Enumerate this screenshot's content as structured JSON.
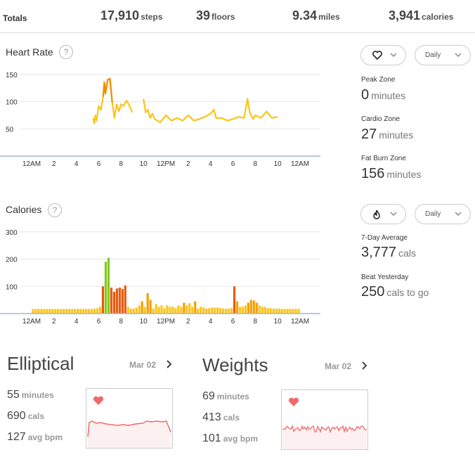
{
  "totals": {
    "label": "Totals",
    "items": [
      {
        "value": "17,910",
        "unit": "steps"
      },
      {
        "value": "39",
        "unit": "floors"
      },
      {
        "value": "9.34",
        "unit": "miles"
      },
      {
        "value": "3,941",
        "unit": "calories"
      }
    ]
  },
  "heart_rate": {
    "title": "Heart Rate",
    "help": "?",
    "period_dropdown": "Daily",
    "icon": "heart-icon",
    "zones": [
      {
        "label": "Peak Zone",
        "value": "0",
        "unit": "minutes"
      },
      {
        "label": "Cardio Zone",
        "value": "27",
        "unit": "minutes"
      },
      {
        "label": "Fat Burn Zone",
        "value": "156",
        "unit": "minutes"
      }
    ]
  },
  "calories": {
    "title": "Calories",
    "help": "?",
    "period_dropdown": "Daily",
    "icon": "flame-icon",
    "stats": [
      {
        "label": "7-Day Average",
        "value": "3,777",
        "unit": "cals"
      },
      {
        "label": "Beat Yesterday",
        "value": "250",
        "unit": "cals to go"
      }
    ]
  },
  "exercises": [
    {
      "title": "Elliptical",
      "date": "Mar 02",
      "stats": [
        {
          "value": "55",
          "unit": "minutes"
        },
        {
          "value": "690",
          "unit": "cals"
        },
        {
          "value": "127",
          "unit": "avg bpm"
        }
      ]
    },
    {
      "title": "Weights",
      "date": "Mar 02",
      "stats": [
        {
          "value": "69",
          "unit": "minutes"
        },
        {
          "value": "413",
          "unit": "cals"
        },
        {
          "value": "101",
          "unit": "avg bpm"
        }
      ]
    }
  ],
  "colors": {
    "hr_line": "#fcc419",
    "hr_line_hot": "#f08c00",
    "cal_bar": "#fcc419",
    "cal_bar_mid": "#f59f00",
    "cal_bar_hot": "#e8590c",
    "cal_bar_peak": "#82c91e",
    "ex_line": "#f06a6a",
    "ex_heart": "#f06a6a"
  },
  "chart_data": [
    {
      "type": "line",
      "name": "heart-rate",
      "x_tick_labels": [
        "12AM",
        "2",
        "4",
        "6",
        "8",
        "10",
        "12PM",
        "2",
        "4",
        "6",
        "8",
        "10",
        "12AM"
      ],
      "y_ticks": [
        50,
        100,
        150
      ],
      "ylim": [
        0,
        160
      ],
      "xlim_hours": [
        0,
        24
      ],
      "segments": [
        {
          "x": [
            5.5,
            5.6,
            5.7,
            5.8,
            6.0,
            6.2,
            6.4,
            6.5,
            6.6,
            6.8,
            7.0,
            7.2,
            7.4,
            7.6,
            7.8,
            8.0,
            8.2,
            8.5,
            8.8,
            9.0
          ],
          "y": [
            70,
            60,
            75,
            65,
            92,
            85,
            110,
            135,
            115,
            140,
            142,
            100,
            70,
            95,
            82,
            95,
            92,
            102,
            90,
            80
          ]
        },
        {
          "x": [
            10.0,
            10.2,
            10.4,
            10.6,
            10.8,
            11.0,
            11.5,
            12.0,
            12.5,
            13.0,
            13.5,
            14.0,
            14.5,
            15.0,
            15.5,
            16.0,
            16.3,
            16.5,
            17.0,
            17.5,
            18.0,
            18.5,
            19.0,
            19.3,
            19.5,
            19.8,
            20.0,
            20.5,
            21.0,
            21.5,
            22.0
          ],
          "y": [
            105,
            80,
            85,
            70,
            78,
            68,
            62,
            75,
            65,
            70,
            65,
            75,
            65,
            68,
            72,
            78,
            85,
            70,
            70,
            65,
            68,
            72,
            70,
            105,
            80,
            68,
            75,
            70,
            82,
            70,
            72
          ]
        }
      ]
    },
    {
      "type": "bar",
      "name": "calories",
      "x_tick_labels": [
        "12AM",
        "2",
        "4",
        "6",
        "8",
        "10",
        "12PM",
        "2",
        "4",
        "6",
        "8",
        "10",
        "12AM"
      ],
      "y_ticks": [
        100,
        200,
        300
      ],
      "ylim": [
        0,
        320
      ],
      "interval_hours": 0.25,
      "values": [
        17,
        17,
        17,
        17,
        17,
        17,
        17,
        17,
        17,
        17,
        17,
        17,
        17,
        17,
        17,
        17,
        17,
        17,
        17,
        17,
        17,
        17,
        18,
        20,
        25,
        100,
        190,
        205,
        95,
        80,
        92,
        95,
        90,
        103,
        25,
        18,
        18,
        22,
        30,
        45,
        25,
        75,
        50,
        18,
        35,
        25,
        30,
        20,
        30,
        25,
        25,
        20,
        30,
        25,
        40,
        30,
        38,
        25,
        45,
        18,
        25,
        22,
        18,
        20,
        22,
        22,
        22,
        20,
        18,
        18,
        18,
        20,
        100,
        45,
        25,
        25,
        30,
        40,
        50,
        48,
        40,
        30,
        25,
        25,
        20,
        20,
        18,
        18,
        18,
        17,
        17,
        17,
        17,
        17,
        17,
        17
      ]
    }
  ]
}
